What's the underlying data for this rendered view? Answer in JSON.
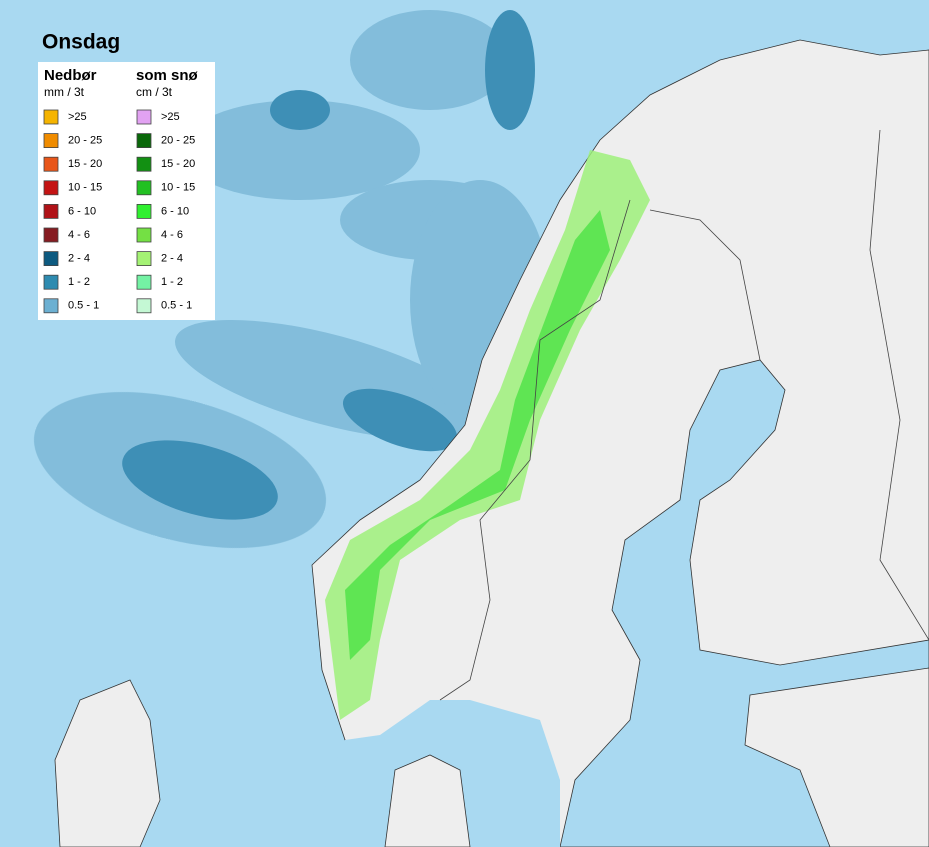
{
  "title": "Onsdag",
  "legend": {
    "precip": {
      "title": "Nedbør",
      "unit": "mm / 3t",
      "items": [
        {
          "label": ">25",
          "color": "#f5b400"
        },
        {
          "label": "20 - 25",
          "color": "#f08c00"
        },
        {
          "label": "15 - 20",
          "color": "#e8561a"
        },
        {
          "label": "10 - 15",
          "color": "#c41414"
        },
        {
          "label": "6 - 10",
          "color": "#b01218"
        },
        {
          "label": "4 - 6",
          "color": "#861c22"
        },
        {
          "label": "2 - 4",
          "color": "#0d5a80"
        },
        {
          "label": "1 - 2",
          "color": "#2e8bb0"
        },
        {
          "label": "0.5 - 1",
          "color": "#6cb0d2"
        }
      ]
    },
    "snow": {
      "title": "som snø",
      "unit": "cm / 3t",
      "items": [
        {
          "label": ">25",
          "color": "#e2a2f2"
        },
        {
          "label": "20 - 25",
          "color": "#0a680a"
        },
        {
          "label": "15 - 20",
          "color": "#129012"
        },
        {
          "label": "10 - 15",
          "color": "#22c022"
        },
        {
          "label": "6 - 10",
          "color": "#30f030"
        },
        {
          "label": "4 - 6",
          "color": "#74e044"
        },
        {
          "label": "2 - 4",
          "color": "#a4f274"
        },
        {
          "label": "1 - 2",
          "color": "#74f2a4"
        },
        {
          "label": "0.5 - 1",
          "color": "#c4f8d4"
        }
      ]
    }
  }
}
